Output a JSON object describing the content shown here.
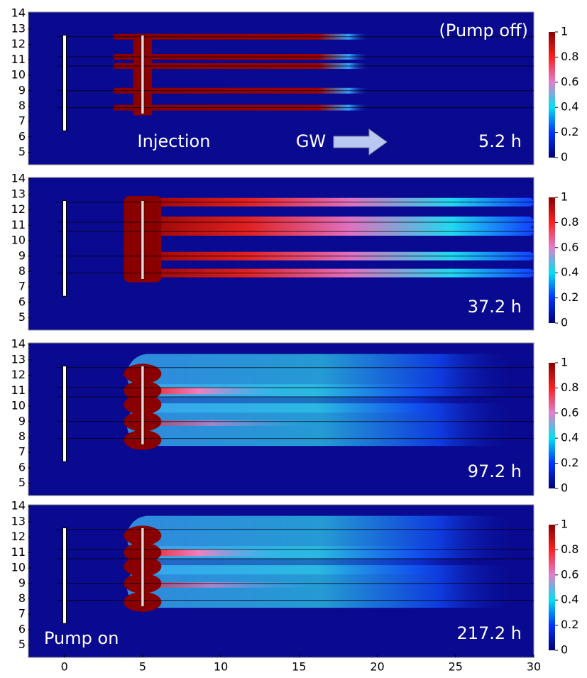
{
  "chart_data": [
    {
      "type": "heatmap",
      "xlim": [
        -2.3,
        30
      ],
      "ylim": [
        4.2,
        14.1
      ],
      "yticks": [
        5,
        6,
        7,
        8,
        9,
        10,
        11,
        12,
        13,
        14
      ],
      "colorbar": {
        "lim": [
          0,
          1
        ],
        "ticks": [
          0,
          0.2,
          0.4,
          0.6,
          0.8,
          1
        ]
      },
      "annotations": [
        "(Pump off)",
        "Injection",
        "GW",
        "5.2 h"
      ]
    },
    {
      "type": "heatmap",
      "xlim": [
        -2.3,
        30
      ],
      "ylim": [
        4.2,
        14.1
      ],
      "yticks": [
        5,
        6,
        7,
        8,
        9,
        10,
        11,
        12,
        13,
        14
      ],
      "colorbar": {
        "lim": [
          0,
          1
        ],
        "ticks": [
          0,
          0.2,
          0.4,
          0.6,
          0.8,
          1
        ]
      },
      "annotations": [
        "37.2 h"
      ]
    },
    {
      "type": "heatmap",
      "xlim": [
        -2.3,
        30
      ],
      "ylim": [
        4.2,
        14.1
      ],
      "yticks": [
        5,
        6,
        7,
        8,
        9,
        10,
        11,
        12,
        13,
        14
      ],
      "colorbar": {
        "lim": [
          0,
          1
        ],
        "ticks": [
          0,
          0.2,
          0.4,
          0.6,
          0.8,
          1
        ]
      },
      "annotations": [
        "97.2 h"
      ]
    },
    {
      "type": "heatmap",
      "xlim": [
        -2.3,
        30
      ],
      "ylim": [
        4.2,
        14.1
      ],
      "yticks": [
        5,
        6,
        7,
        8,
        9,
        10,
        11,
        12,
        13,
        14
      ],
      "xticks": [
        0,
        5,
        10,
        15,
        20,
        25,
        30
      ],
      "colorbar": {
        "lim": [
          0,
          1
        ],
        "ticks": [
          0,
          0.2,
          0.4,
          0.6,
          0.8,
          1
        ]
      },
      "annotations": [
        "Pump on",
        "217.2 h"
      ]
    }
  ]
}
